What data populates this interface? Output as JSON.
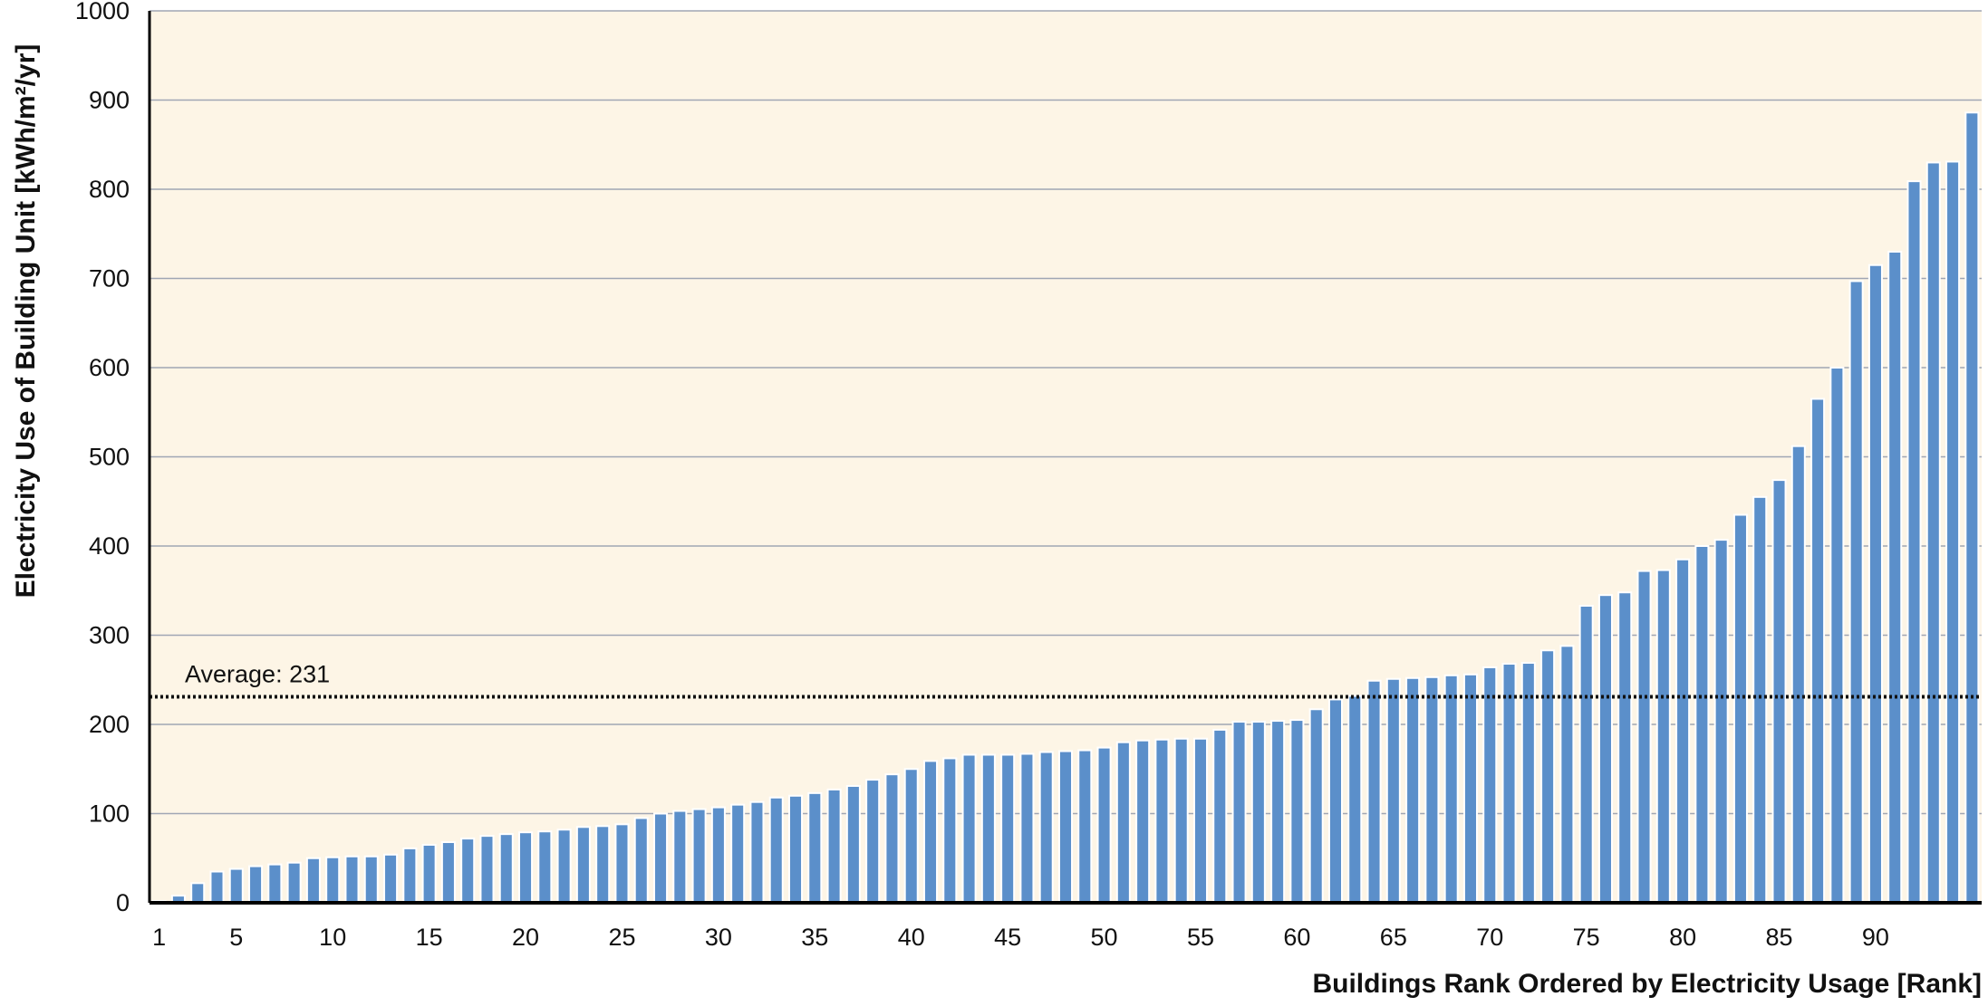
{
  "chart_data": {
    "type": "bar",
    "title": "",
    "xlabel": "Buildings Rank Ordered by Electricity Usage [Rank]",
    "ylabel": "Electricity Use of Building Unit [kWh/m²/yr]",
    "ylim": [
      0,
      1000
    ],
    "yticks": [
      0,
      100,
      200,
      300,
      400,
      500,
      600,
      700,
      800,
      900,
      1000
    ],
    "yticks_labels": [
      "0",
      "100",
      "200",
      "300",
      "400",
      "500",
      "600",
      "700",
      "800",
      "900",
      "1000"
    ],
    "xticks": [
      1,
      5,
      10,
      15,
      20,
      25,
      30,
      35,
      40,
      45,
      50,
      55,
      60,
      65,
      70,
      75,
      80,
      85,
      90
    ],
    "xticks_labels": [
      "1",
      "5",
      "10",
      "15",
      "20",
      "25",
      "30",
      "35",
      "40",
      "45",
      "50",
      "55",
      "60",
      "65",
      "70",
      "75",
      "80",
      "85",
      "90"
    ],
    "grid": true,
    "background_color": "#fdf5e6",
    "bar_color": "#5b8fca",
    "average": {
      "value": 231,
      "label": "Average: 231"
    },
    "values": [
      2,
      8,
      22,
      35,
      38,
      41,
      43,
      45,
      50,
      51,
      52,
      52,
      54,
      61,
      65,
      68,
      72,
      75,
      77,
      79,
      80,
      82,
      85,
      86,
      88,
      95,
      100,
      103,
      105,
      107,
      110,
      113,
      118,
      120,
      123,
      127,
      131,
      138,
      144,
      150,
      159,
      162,
      166,
      166,
      166,
      167,
      169,
      170,
      171,
      174,
      180,
      182,
      183,
      184,
      184,
      194,
      203,
      203,
      204,
      205,
      217,
      228,
      232,
      249,
      251,
      252,
      253,
      255,
      256,
      264,
      268,
      269,
      283,
      288,
      333,
      345,
      348,
      372,
      373,
      385,
      400,
      407,
      435,
      455,
      474,
      512,
      565,
      600,
      697,
      715,
      730,
      809,
      830,
      831,
      886
    ]
  }
}
